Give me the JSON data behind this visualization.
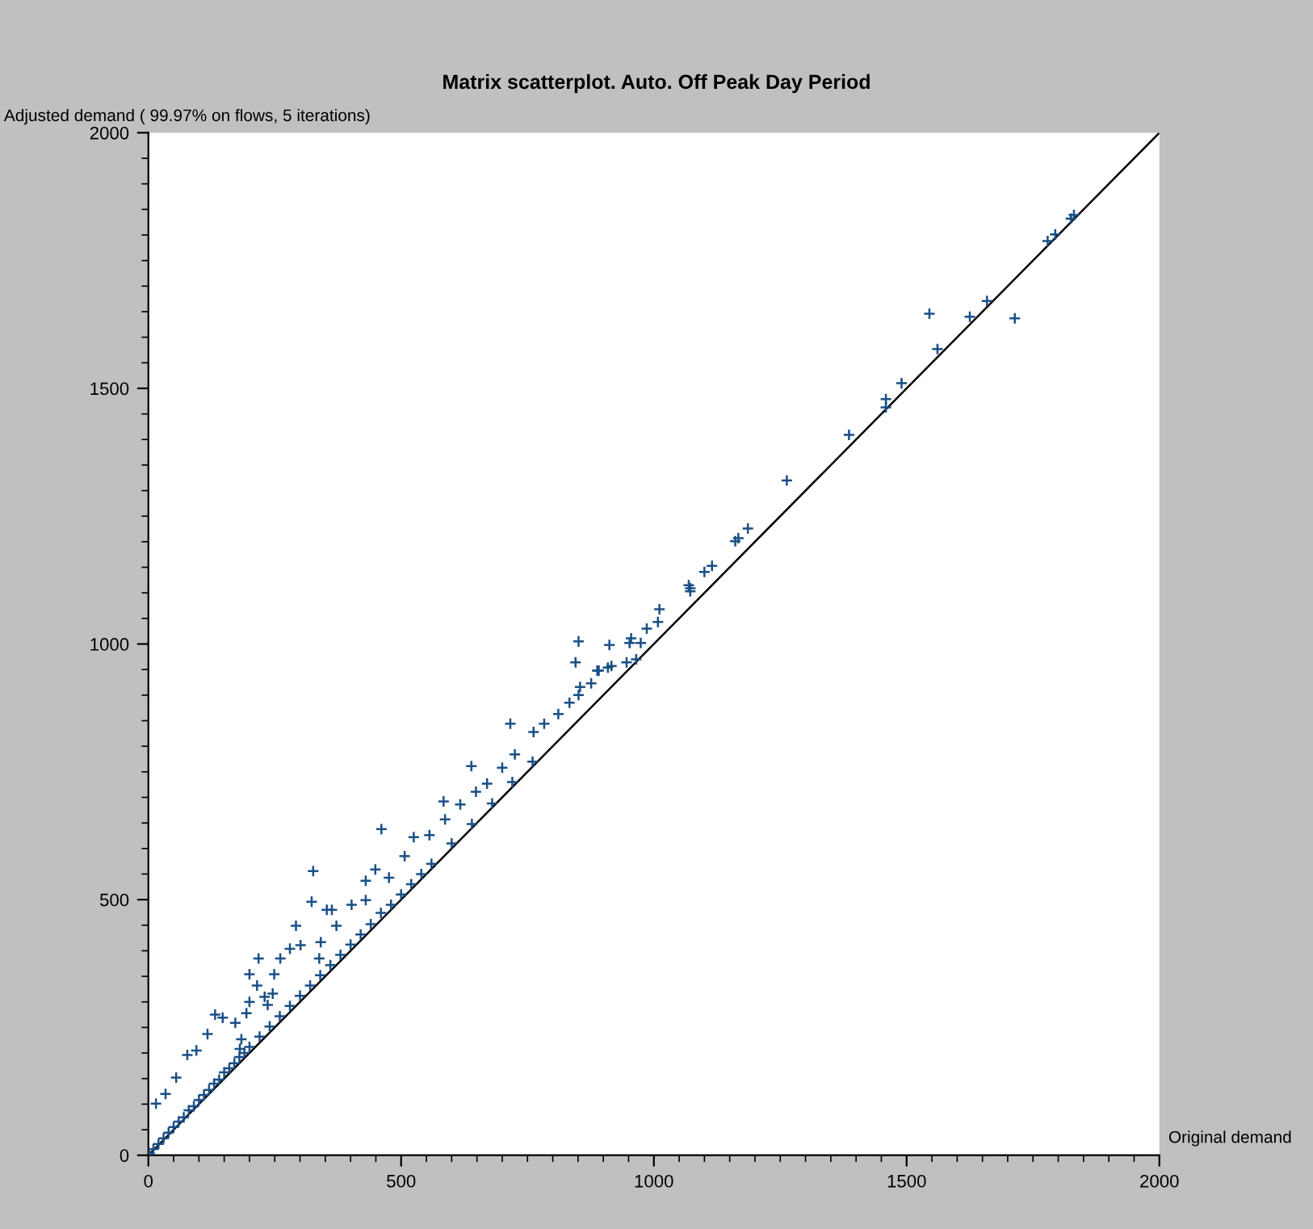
{
  "chart_data": {
    "type": "scatter",
    "title": "Matrix scatterplot. Auto. Off Peak Day Period",
    "xlabel": "Original demand",
    "ylabel": "Adjusted demand ( 99.97% on flows, 5 iterations)",
    "xlim": [
      0,
      2000
    ],
    "ylim": [
      0,
      2000
    ],
    "xticks": [
      0,
      500,
      1000,
      1500,
      2000
    ],
    "yticks": [
      0,
      500,
      1000,
      1500,
      2000
    ],
    "grid": false,
    "marker": "cross",
    "series": [
      {
        "color": "#1b4f86",
        "x": [
          1831,
          1825,
          1794,
          1779,
          1659,
          1625,
          1714,
          1545,
          1561,
          1490,
          1459,
          1459,
          1386,
          1263,
          1186,
          1167,
          1161,
          1115,
          1069,
          1072,
          1008,
          1100,
          1072,
          1011,
          986,
          912,
          916,
          955,
          952,
          974,
          891,
          965,
          946,
          854,
          851,
          845,
          909,
          888,
          876,
          851,
          833,
          811,
          783,
          716,
          762,
          725,
          700,
          639,
          670,
          648,
          617,
          584,
          587,
          556,
          525,
          507,
          461,
          476,
          449,
          430,
          430,
          402,
          326,
          323,
          353,
          363,
          372,
          341,
          338,
          292,
          301,
          280,
          261,
          249,
          246,
          218,
          215,
          230,
          200,
          200,
          194,
          184,
          172,
          147,
          132,
          117,
          95,
          77,
          55,
          34,
          15,
          2,
          236,
          181,
          10,
          20,
          30,
          40,
          50,
          60,
          70,
          80,
          90,
          100,
          110,
          120,
          130,
          140,
          150,
          160,
          170,
          180,
          190,
          200,
          220,
          240,
          260,
          280,
          300,
          320,
          340,
          360,
          380,
          400,
          420,
          440,
          460,
          480,
          500,
          520,
          540,
          560,
          600,
          640,
          680,
          720,
          760
        ],
        "values": [
          1839,
          1832,
          1801,
          1788,
          1671,
          1640,
          1637,
          1646,
          1577,
          1510,
          1479,
          1463,
          1409,
          1320,
          1226,
          1207,
          1201,
          1153,
          1115,
          1103,
          1043,
          1141,
          1109,
          1068,
          1030,
          998,
          957,
          1011,
          1002,
          1002,
          948,
          970,
          964,
          916,
          1005,
          964,
          954,
          948,
          923,
          900,
          885,
          863,
          844,
          844,
          828,
          784,
          758,
          761,
          727,
          711,
          686,
          692,
          657,
          626,
          622,
          585,
          638,
          543,
          559,
          537,
          499,
          490,
          556,
          496,
          480,
          480,
          449,
          417,
          385,
          449,
          411,
          404,
          385,
          354,
          316,
          385,
          332,
          310,
          354,
          300,
          278,
          227,
          259,
          269,
          275,
          237,
          205,
          196,
          152,
          120,
          101,
          4,
          294,
          208,
          12,
          22,
          33,
          44,
          55,
          66,
          74,
          88,
          96,
          108,
          118,
          128,
          140,
          148,
          162,
          170,
          180,
          192,
          200,
          212,
          232,
          252,
          272,
          292,
          312,
          332,
          352,
          372,
          392,
          412,
          432,
          452,
          474,
          490,
          510,
          530,
          550,
          570,
          610,
          648,
          688,
          730,
          770
        ]
      },
      {
        "type": "line",
        "color": "#000000",
        "marker": "none",
        "x": [
          0,
          2000
        ],
        "values": [
          0,
          2000
        ]
      }
    ]
  }
}
